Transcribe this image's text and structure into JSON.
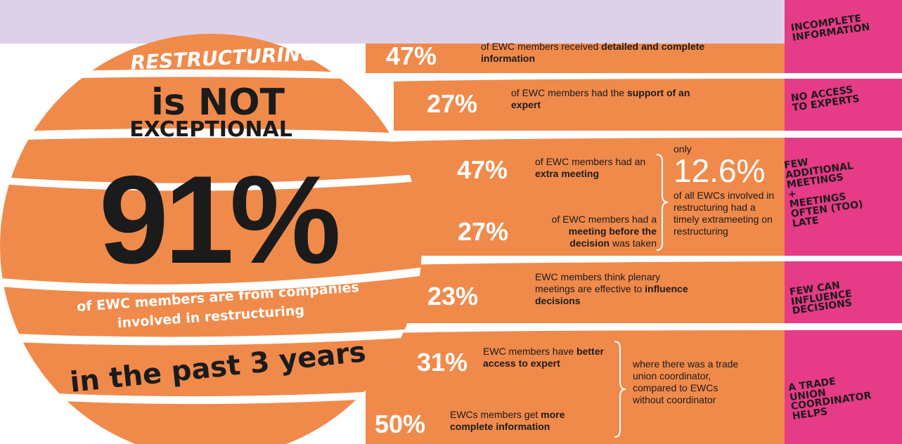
{
  "sphere": {
    "restructuring": "RESTRUCTURING",
    "is_not": "is NOT",
    "exceptional": "EXCEPTIONAL",
    "big_pct": "91%",
    "members_line1": "of EWC members are from companies",
    "members_line2": "involved in restructuring",
    "past_years": "in the past 3 years"
  },
  "rows": [
    {
      "pct": "47%",
      "text_pre": "of EWC members received ",
      "text_bold": "detailed and complete information",
      "text_post": "",
      "tag": "INCOMPLETE\nINFORMATION"
    },
    {
      "pct": "27%",
      "text_pre": "of EWC members had the ",
      "text_bold": "support of an expert",
      "text_post": "",
      "tag": "NO ACCESS\nTO EXPERTS"
    },
    {
      "pct": "47%",
      "text_pre": "of EWC members had an ",
      "text_bold": "extra meeting",
      "text_post": "",
      "tag": "FEW\nADDITIONAL\nMEETINGS\n+\nMEETINGS\nOFTEN (TOO)\nLATE"
    },
    {
      "pct": "27%",
      "text_pre": "of EWC members had a ",
      "text_bold": "meeting before the decision",
      "text_post": " was taken",
      "tag": ""
    },
    {
      "pct": "23%",
      "text_pre": "EWC members think plenary meetings are effective to ",
      "text_bold": "influence decisions",
      "text_post": "",
      "tag": "FEW CAN\nINFLUENCE\nDECISIONS"
    },
    {
      "pct": "31%",
      "text_pre": "EWC members have ",
      "text_bold": "better access to expert",
      "text_post": "",
      "tag": "A TRADE\nUNION\nCOORDINATOR\nHELPS"
    },
    {
      "pct": "50%",
      "text_pre": "EWCs members get ",
      "text_bold": "more complete information",
      "text_post": "",
      "tag": ""
    }
  ],
  "meeting_note": {
    "only": "only",
    "value": "12.6%",
    "text": "of all EWCs involved in restructuring had a timely extrameeting on restructuring"
  },
  "coordinator_note": {
    "text": "where there was a trade union coordinator, compared to EWCs without coordinator"
  },
  "colors": {
    "orange": "#f08a4b",
    "pink": "#e63b86",
    "lavender": "#ddd1ea",
    "dark": "#1b1b1b",
    "white": "#ffffff"
  }
}
